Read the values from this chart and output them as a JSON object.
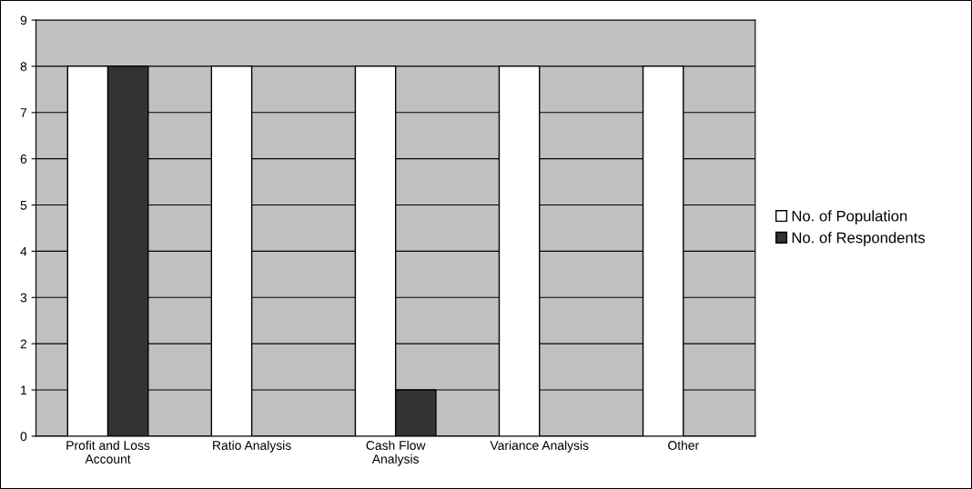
{
  "chart_data": {
    "type": "bar",
    "categories": [
      "Profit and Loss\nAccount",
      "Ratio Analysis",
      "Cash Flow\nAnalysis",
      "Variance Analysis",
      "Other"
    ],
    "series": [
      {
        "name": "No. of Population",
        "color": "#ffffff",
        "values": [
          8,
          8,
          8,
          8,
          8
        ]
      },
      {
        "name": "No. of Respondents",
        "color": "#333333",
        "values": [
          8,
          0,
          1,
          0,
          0
        ]
      }
    ],
    "ylim": [
      0,
      9
    ],
    "yticks": [
      0,
      1,
      2,
      3,
      4,
      5,
      6,
      7,
      8,
      9
    ],
    "grid": "y",
    "legend": "right"
  }
}
